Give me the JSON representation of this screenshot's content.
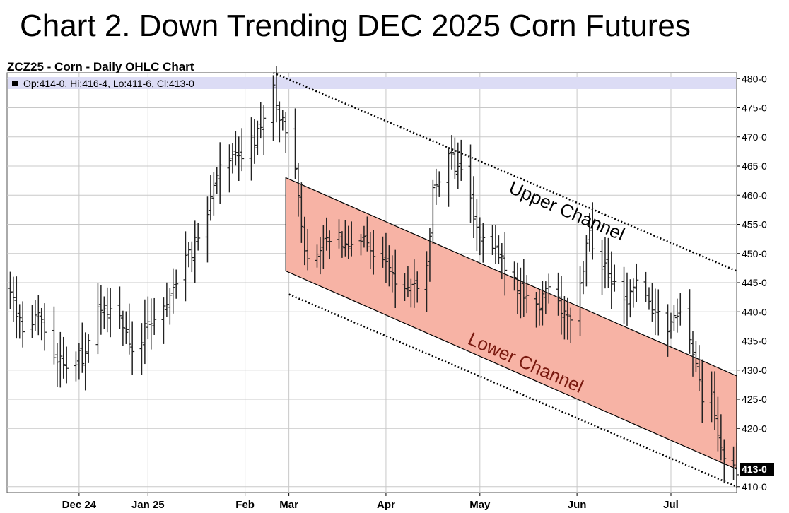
{
  "headline": "Chart 2. Down Trending DEC 2025 Corn Futures",
  "chart_data": {
    "type": "ohlc",
    "title": "ZCZ25 - Corn - Daily OHLC Chart",
    "legend": {
      "swatch_color": "#000000",
      "text": "Op:414-0, Hi:416-4, Lo:411-6, Cl:413-0",
      "background": "#dcdcf5",
      "placement": "top-left"
    },
    "yaxis": {
      "position": "right",
      "min": 409,
      "max": 481,
      "ticks": [
        480,
        475,
        470,
        465,
        460,
        455,
        450,
        445,
        440,
        435,
        430,
        425,
        420,
        410
      ],
      "tick_labels": [
        "480-0",
        "475-0",
        "470-0",
        "465-0",
        "460-0",
        "455-0",
        "450-0",
        "445-0",
        "440-0",
        "435-0",
        "430-0",
        "425-0",
        "420-0",
        "410-0"
      ],
      "last_price": 413,
      "last_price_label": "413-0"
    },
    "xaxis": {
      "min": "2024-12-01",
      "max": "2025-07-22",
      "ticks": [
        "2024-12-24",
        "2025-01-15",
        "2025-02-15",
        "2025-03-01",
        "2025-04-01",
        "2025-05-01",
        "2025-06-01",
        "2025-07-01"
      ],
      "tick_labels": [
        "Dec 24",
        "Jan 25",
        "Feb",
        "Mar",
        "Apr",
        "May",
        "Jun",
        "Jul"
      ]
    },
    "grid": true,
    "anchors": [
      [
        "2024-12-01",
        444
      ],
      [
        "2024-12-06",
        438
      ],
      [
        "2024-12-11",
        440
      ],
      [
        "2024-12-17",
        432
      ],
      [
        "2024-12-20",
        430
      ],
      [
        "2024-12-26",
        433
      ],
      [
        "2024-12-31",
        441
      ],
      [
        "2025-01-06",
        439
      ],
      [
        "2025-01-10",
        434
      ],
      [
        "2025-01-17",
        439
      ],
      [
        "2025-01-24",
        445
      ],
      [
        "2025-01-31",
        453
      ],
      [
        "2025-02-03",
        458
      ],
      [
        "2025-02-07",
        465
      ],
      [
        "2025-02-12",
        467
      ],
      [
        "2025-02-14",
        467
      ],
      [
        "2025-02-18",
        470
      ],
      [
        "2025-02-24",
        478
      ],
      [
        "2025-02-27",
        472
      ],
      [
        "2025-03-03",
        463
      ],
      [
        "2025-03-06",
        450
      ],
      [
        "2025-03-14",
        452
      ],
      [
        "2025-03-24",
        453
      ],
      [
        "2025-04-01",
        448
      ],
      [
        "2025-04-08",
        443
      ],
      [
        "2025-04-14",
        447
      ],
      [
        "2025-04-16",
        460
      ],
      [
        "2025-04-21",
        467
      ],
      [
        "2025-04-25",
        463
      ],
      [
        "2025-04-30",
        455
      ],
      [
        "2025-05-06",
        450
      ],
      [
        "2025-05-12",
        445
      ],
      [
        "2025-05-19",
        441
      ],
      [
        "2025-05-23",
        443
      ],
      [
        "2025-05-30",
        439
      ],
      [
        "2025-06-05",
        453
      ],
      [
        "2025-06-12",
        445
      ],
      [
        "2025-06-16",
        441
      ],
      [
        "2025-06-20",
        446
      ],
      [
        "2025-06-25",
        440
      ],
      [
        "2025-06-30",
        437
      ],
      [
        "2025-07-04",
        441
      ],
      [
        "2025-07-08",
        434
      ],
      [
        "2025-07-11",
        425
      ],
      [
        "2025-07-14",
        427
      ],
      [
        "2025-07-16",
        420
      ],
      [
        "2025-07-18",
        416
      ],
      [
        "2025-07-22",
        413
      ]
    ],
    "channels": [
      {
        "name": "Upper Channel",
        "style": "dotted",
        "line": [
          [
            "2025-02-24",
            481
          ],
          [
            "2025-07-22",
            447
          ]
        ]
      },
      {
        "name": "Lower Channel",
        "style": "filled",
        "fill": "#f7b3a5",
        "top_line": [
          [
            "2025-02-28",
            463
          ],
          [
            "2025-07-22",
            429
          ]
        ],
        "bottom_line": [
          [
            "2025-02-28",
            447
          ],
          [
            "2025-07-22",
            413
          ]
        ],
        "dotted_support": [
          [
            "2025-03-01",
            443
          ],
          [
            "2025-07-22",
            410
          ]
        ]
      }
    ]
  }
}
